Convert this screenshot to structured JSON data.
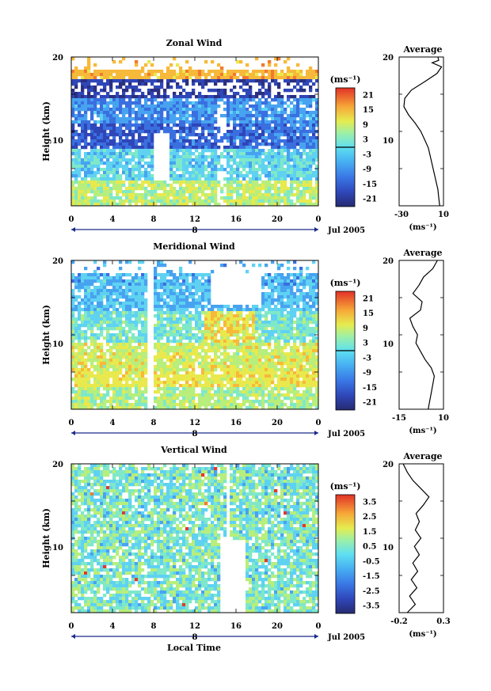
{
  "chart_data": [
    {
      "type": "heatmap",
      "title": "Zonal Wind",
      "ylabel": "Height (km)",
      "yticks": [
        "20",
        "10"
      ],
      "ylim": [
        2,
        20
      ],
      "xticks": [
        "0",
        "4",
        "8",
        "12",
        "16",
        "20",
        "0"
      ],
      "xlim": [
        0,
        24
      ],
      "date_marker": "8",
      "month_label": "Jul 2005",
      "colorbar": {
        "unit": "(ms⁻¹)",
        "ticks": [
          "21",
          "15",
          "9",
          "3",
          "-3",
          "-9",
          "-15",
          "-21"
        ],
        "range": [
          -24,
          24
        ]
      },
      "average": {
        "title": "Average",
        "yticks": [
          "20",
          "10"
        ],
        "xticks": [
          "-30",
          "10"
        ],
        "xlim": [
          -35,
          12
        ],
        "xlabel": "(ms⁻¹)",
        "profile": [
          {
            "h": 2.0,
            "v": 8
          },
          {
            "h": 3.0,
            "v": 7
          },
          {
            "h": 4.0,
            "v": 6
          },
          {
            "h": 5.0,
            "v": 4
          },
          {
            "h": 6.0,
            "v": 2
          },
          {
            "h": 7.0,
            "v": 0
          },
          {
            "h": 8.0,
            "v": -2
          },
          {
            "h": 9.0,
            "v": -4
          },
          {
            "h": 10.0,
            "v": -8
          },
          {
            "h": 11.0,
            "v": -12
          },
          {
            "h": 12.0,
            "v": -18
          },
          {
            "h": 13.0,
            "v": -25
          },
          {
            "h": 14.0,
            "v": -30
          },
          {
            "h": 15.0,
            "v": -29
          },
          {
            "h": 16.0,
            "v": -22
          },
          {
            "h": 17.0,
            "v": -8
          },
          {
            "h": 18.0,
            "v": 5
          },
          {
            "h": 18.8,
            "v": 10
          },
          {
            "h": 19.3,
            "v": 0
          },
          {
            "h": 19.6,
            "v": 7
          },
          {
            "h": 20.0,
            "v": 6
          }
        ]
      }
    },
    {
      "type": "heatmap",
      "title": "Meridional Wind",
      "ylabel": "Height (km)",
      "yticks": [
        "20",
        "10"
      ],
      "ylim": [
        2,
        20
      ],
      "xticks": [
        "0",
        "4",
        "8",
        "12",
        "16",
        "20",
        "0"
      ],
      "xlim": [
        0,
        24
      ],
      "date_marker": "8",
      "month_label": "Jul 2005",
      "colorbar": {
        "unit": "(ms⁻¹)",
        "ticks": [
          "21",
          "15",
          "9",
          "3",
          "-3",
          "-9",
          "-15",
          "-21"
        ],
        "range": [
          -24,
          24
        ]
      },
      "average": {
        "title": "Average",
        "yticks": [
          "20",
          "10"
        ],
        "xticks": [
          "-15",
          "10"
        ],
        "xlim": [
          -17,
          12
        ],
        "xlabel": "(ms⁻¹)",
        "profile": [
          {
            "h": 2.0,
            "v": 2
          },
          {
            "h": 3.0,
            "v": 3
          },
          {
            "h": 4.0,
            "v": 4
          },
          {
            "h": 5.0,
            "v": 5
          },
          {
            "h": 6.0,
            "v": 6
          },
          {
            "h": 7.0,
            "v": 4
          },
          {
            "h": 8.0,
            "v": 0
          },
          {
            "h": 9.0,
            "v": -3
          },
          {
            "h": 10.0,
            "v": -6
          },
          {
            "h": 11.0,
            "v": -5
          },
          {
            "h": 12.0,
            "v": -8
          },
          {
            "h": 13.0,
            "v": -10
          },
          {
            "h": 14.0,
            "v": -3
          },
          {
            "h": 15.0,
            "v": -2
          },
          {
            "h": 16.0,
            "v": -8
          },
          {
            "h": 17.0,
            "v": -4
          },
          {
            "h": 18.0,
            "v": -1
          },
          {
            "h": 19.0,
            "v": 5
          },
          {
            "h": 20.0,
            "v": 8
          }
        ]
      }
    },
    {
      "type": "heatmap",
      "title": "Vertical Wind",
      "ylabel": "Height (km)",
      "xlabel": "Local Time",
      "yticks": [
        "20",
        "10"
      ],
      "ylim": [
        2,
        20
      ],
      "xticks": [
        "0",
        "4",
        "8",
        "12",
        "16",
        "20",
        "0"
      ],
      "xlim": [
        0,
        24
      ],
      "date_marker": "8",
      "month_label": "Jul 2005",
      "colorbar": {
        "unit": "(ms⁻¹)",
        "ticks": [
          "3.5",
          "2.5",
          "1.5",
          "0.5",
          "-0.5",
          "-1.5",
          "-2.5",
          "-3.5"
        ],
        "range": [
          -4,
          4
        ]
      },
      "average": {
        "title": "Average",
        "yticks": [
          "20",
          "10"
        ],
        "xticks": [
          "-0.2",
          "0.3"
        ],
        "xlim": [
          -0.25,
          0.3
        ],
        "xlabel": "(ms⁻¹)",
        "profile": [
          {
            "h": 2.0,
            "v": -0.15
          },
          {
            "h": 3.0,
            "v": -0.05
          },
          {
            "h": 4.0,
            "v": -0.12
          },
          {
            "h": 5.0,
            "v": -0.03
          },
          {
            "h": 6.0,
            "v": -0.1
          },
          {
            "h": 7.0,
            "v": -0.02
          },
          {
            "h": 8.0,
            "v": -0.08
          },
          {
            "h": 9.0,
            "v": 0.0
          },
          {
            "h": 10.0,
            "v": -0.06
          },
          {
            "h": 11.0,
            "v": 0.02
          },
          {
            "h": 12.0,
            "v": -0.05
          },
          {
            "h": 13.0,
            "v": 0.0
          },
          {
            "h": 14.0,
            "v": -0.04
          },
          {
            "h": 15.0,
            "v": 0.05
          },
          {
            "h": 16.0,
            "v": 0.12
          },
          {
            "h": 17.0,
            "v": 0.02
          },
          {
            "h": 18.0,
            "v": -0.08
          },
          {
            "h": 19.0,
            "v": -0.15
          },
          {
            "h": 20.0,
            "v": -0.2
          }
        ]
      }
    }
  ],
  "colorscale": [
    "#2b2f7f",
    "#2f46b8",
    "#3a6fe0",
    "#47a3f0",
    "#5fd2f2",
    "#7fe8c8",
    "#b7ee7c",
    "#e9e94d",
    "#f7b93a",
    "#f27a2e",
    "#e2392a"
  ]
}
